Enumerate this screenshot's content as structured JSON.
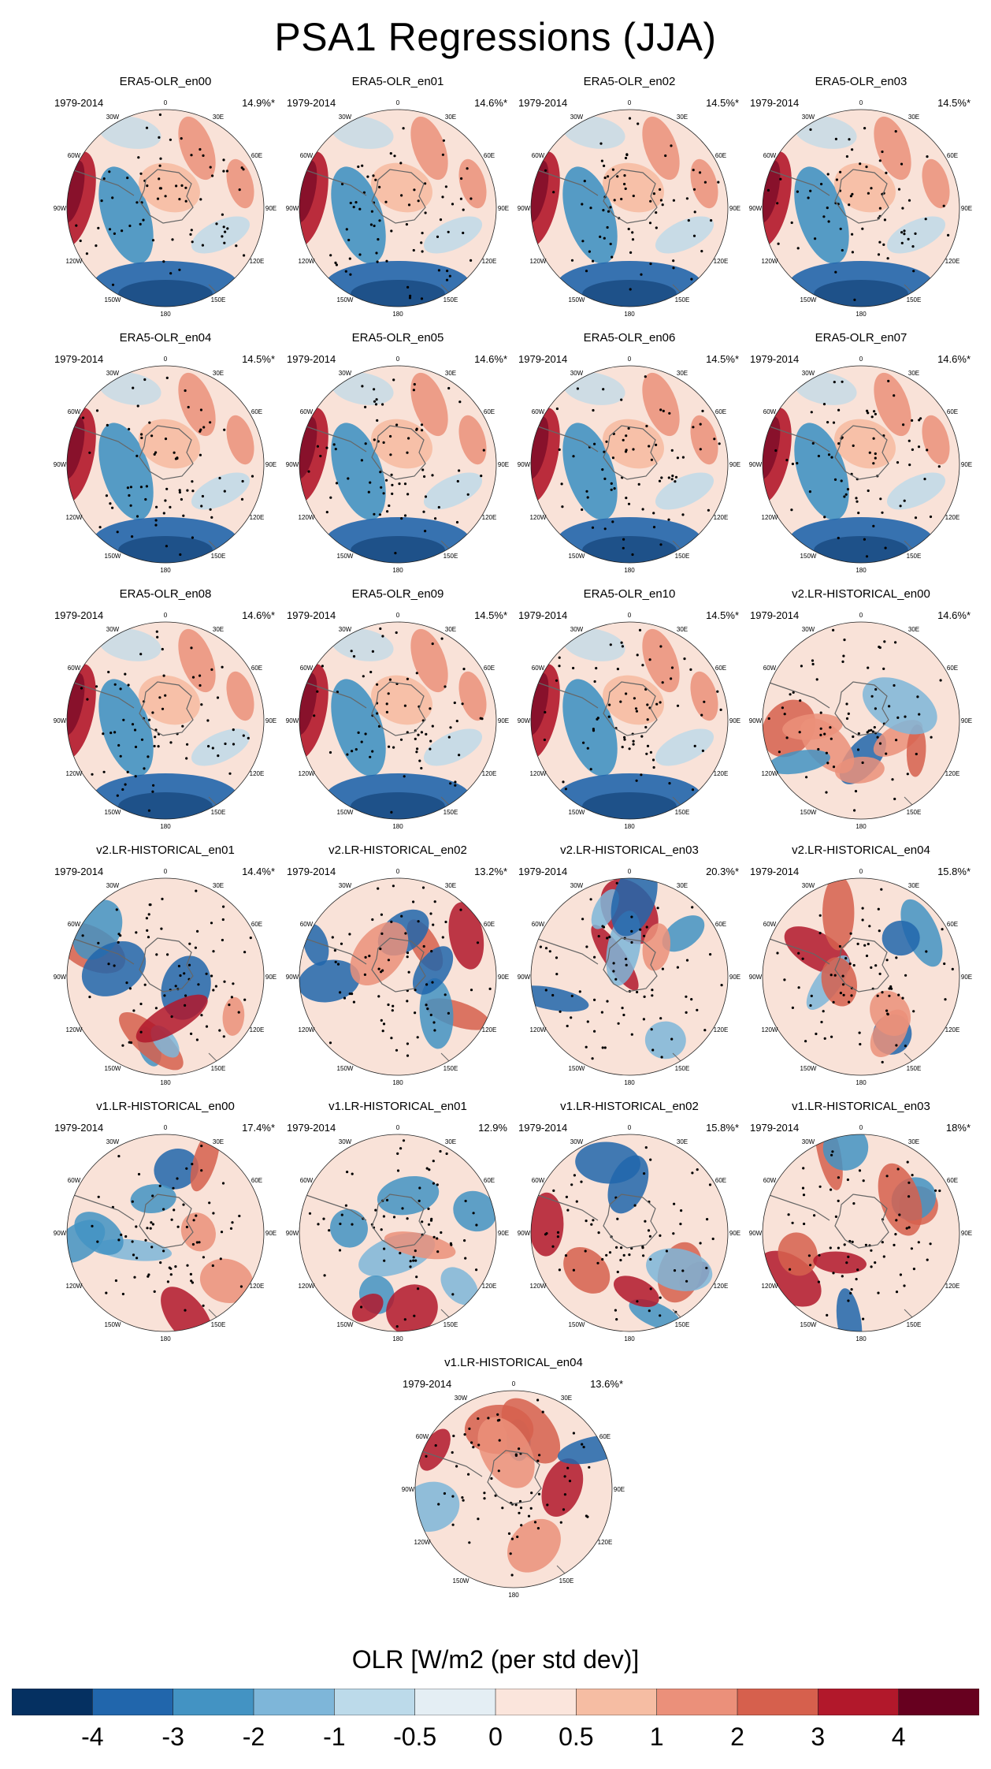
{
  "title": "PSA1 Regressions (JJA)",
  "chart_data": {
    "type": "heatmap",
    "projection": "south-polar-stereographic",
    "period": "1979-2014",
    "longitude_labels": [
      "0",
      "30E",
      "60E",
      "90E",
      "120E",
      "150E",
      "180",
      "150W",
      "120W",
      "90W",
      "60W",
      "30W"
    ],
    "stippling": "significance dots",
    "panels": [
      {
        "name": "ERA5-OLR_en00",
        "period": "1979-2014",
        "variance": "14.9%*",
        "pattern": "era5"
      },
      {
        "name": "ERA5-OLR_en01",
        "period": "1979-2014",
        "variance": "14.6%*",
        "pattern": "era5"
      },
      {
        "name": "ERA5-OLR_en02",
        "period": "1979-2014",
        "variance": "14.5%*",
        "pattern": "era5"
      },
      {
        "name": "ERA5-OLR_en03",
        "period": "1979-2014",
        "variance": "14.5%*",
        "pattern": "era5"
      },
      {
        "name": "ERA5-OLR_en04",
        "period": "1979-2014",
        "variance": "14.5%*",
        "pattern": "era5"
      },
      {
        "name": "ERA5-OLR_en05",
        "period": "1979-2014",
        "variance": "14.6%*",
        "pattern": "era5"
      },
      {
        "name": "ERA5-OLR_en06",
        "period": "1979-2014",
        "variance": "14.5%*",
        "pattern": "era5"
      },
      {
        "name": "ERA5-OLR_en07",
        "period": "1979-2014",
        "variance": "14.6%*",
        "pattern": "era5"
      },
      {
        "name": "ERA5-OLR_en08",
        "period": "1979-2014",
        "variance": "14.6%*",
        "pattern": "era5"
      },
      {
        "name": "ERA5-OLR_en09",
        "period": "1979-2014",
        "variance": "14.5%*",
        "pattern": "era5"
      },
      {
        "name": "ERA5-OLR_en10",
        "period": "1979-2014",
        "variance": "14.5%*",
        "pattern": "era5"
      },
      {
        "name": "v2.LR-HISTORICAL_en00",
        "period": "1979-2014",
        "variance": "14.6%*",
        "pattern": "model"
      },
      {
        "name": "v2.LR-HISTORICAL_en01",
        "period": "1979-2014",
        "variance": "14.4%*",
        "pattern": "model"
      },
      {
        "name": "v2.LR-HISTORICAL_en02",
        "period": "1979-2014",
        "variance": "13.2%*",
        "pattern": "model"
      },
      {
        "name": "v2.LR-HISTORICAL_en03",
        "period": "1979-2014",
        "variance": "20.3%*",
        "pattern": "model"
      },
      {
        "name": "v2.LR-HISTORICAL_en04",
        "period": "1979-2014",
        "variance": "15.8%*",
        "pattern": "model"
      },
      {
        "name": "v1.LR-HISTORICAL_en00",
        "period": "1979-2014",
        "variance": "17.4%*",
        "pattern": "model"
      },
      {
        "name": "v1.LR-HISTORICAL_en01",
        "period": "1979-2014",
        "variance": "12.9%",
        "pattern": "model"
      },
      {
        "name": "v1.LR-HISTORICAL_en02",
        "period": "1979-2014",
        "variance": "15.8%*",
        "pattern": "model"
      },
      {
        "name": "v1.LR-HISTORICAL_en03",
        "period": "1979-2014",
        "variance": "18%*",
        "pattern": "model"
      },
      {
        "name": "v1.LR-HISTORICAL_en04",
        "period": "1979-2014",
        "variance": "13.6%*",
        "pattern": "model"
      }
    ],
    "colorbar": {
      "title": "OLR [W/m2 (per std dev)]",
      "tick_labels": [
        "-4",
        "-3",
        "-2",
        "-1",
        "-0.5",
        "0",
        "0.5",
        "1",
        "2",
        "3",
        "4"
      ],
      "colors": [
        "#053061",
        "#2166ac",
        "#4393c3",
        "#7eb6d9",
        "#bcdaea",
        "#e4eef4",
        "#fbe5dc",
        "#f6bda3",
        "#eb907a",
        "#d6604d",
        "#b2182b",
        "#67001f"
      ]
    }
  }
}
